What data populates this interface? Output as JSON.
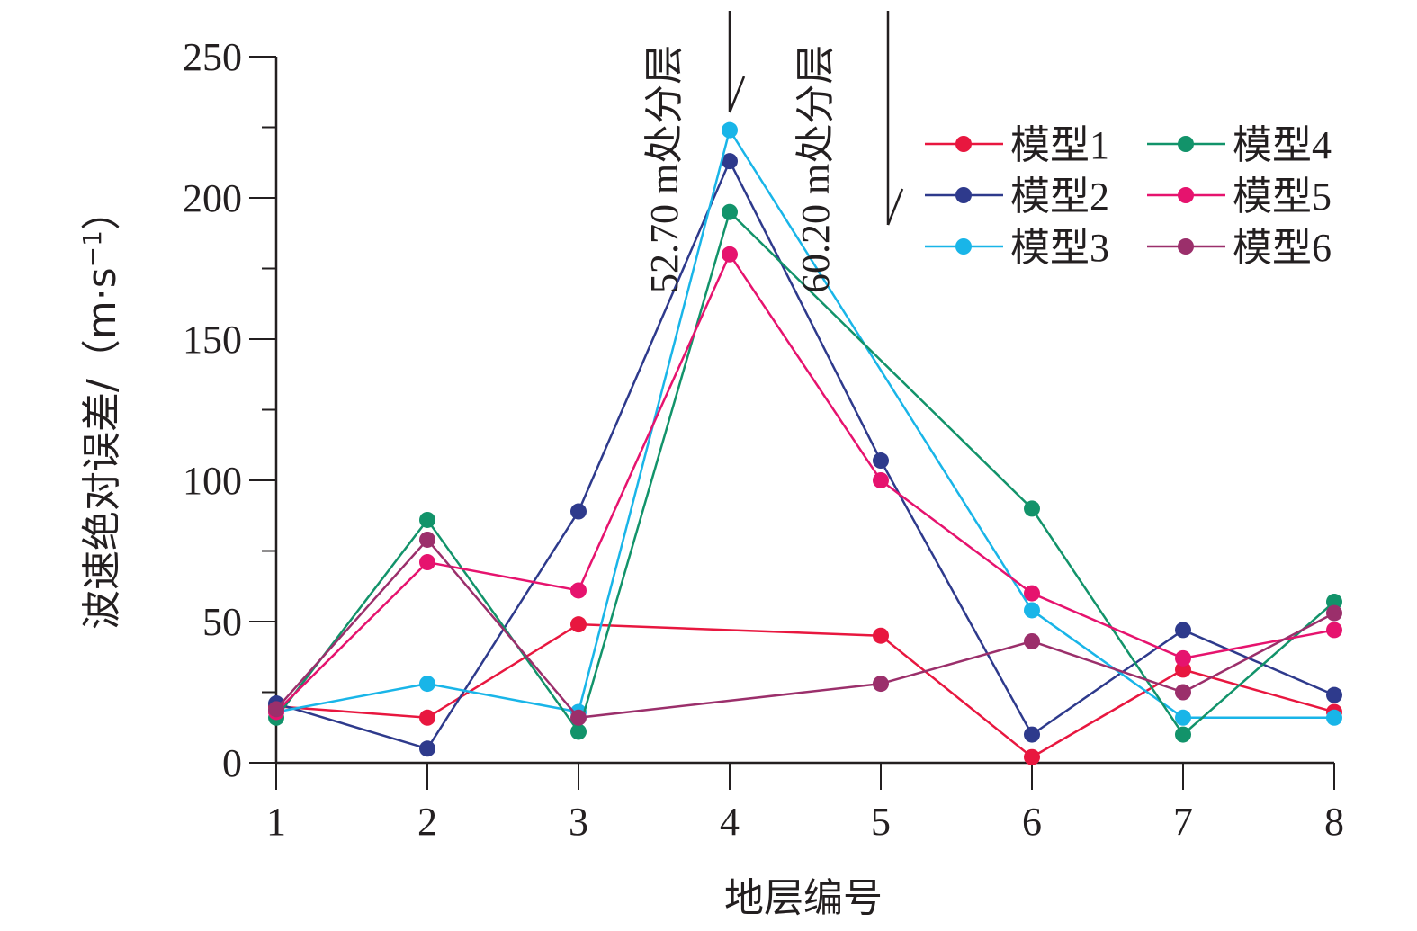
{
  "chart_data": {
    "type": "line",
    "xlabel": "地层编号",
    "ylabel": "波速绝对误差/（m·s",
    "ylabel_sup": "−1",
    "ylabel_close": "）",
    "categories": [
      1,
      2,
      3,
      4,
      5,
      6,
      7,
      8
    ],
    "ylim": [
      0,
      250
    ],
    "yticks": [
      0,
      50,
      100,
      150,
      200,
      250
    ],
    "grid": false,
    "legend_position": "top-right",
    "annotations": [
      {
        "text": "52.70 m处分层",
        "x": 4
      },
      {
        "text": "60.20 m处分层",
        "x": 5
      }
    ],
    "series": [
      {
        "name": "模型1",
        "color": "#e8173f",
        "values": [
          20,
          16,
          49,
          null,
          45,
          2,
          33,
          18
        ]
      },
      {
        "name": "模型2",
        "color": "#2e3a8c",
        "values": [
          21,
          5,
          89,
          213,
          107,
          10,
          47,
          24
        ]
      },
      {
        "name": "模型3",
        "color": "#19b5e8",
        "values": [
          18,
          28,
          18,
          224,
          null,
          54,
          16,
          16
        ]
      },
      {
        "name": "模型4",
        "color": "#12936a",
        "values": [
          16,
          86,
          11,
          195,
          null,
          90,
          10,
          57
        ]
      },
      {
        "name": "模型5",
        "color": "#e6136e",
        "values": [
          18,
          71,
          61,
          180,
          100,
          60,
          37,
          47
        ]
      },
      {
        "name": "模型6",
        "color": "#9b2f6b",
        "values": [
          19,
          79,
          16,
          null,
          28,
          43,
          25,
          53
        ]
      }
    ]
  }
}
